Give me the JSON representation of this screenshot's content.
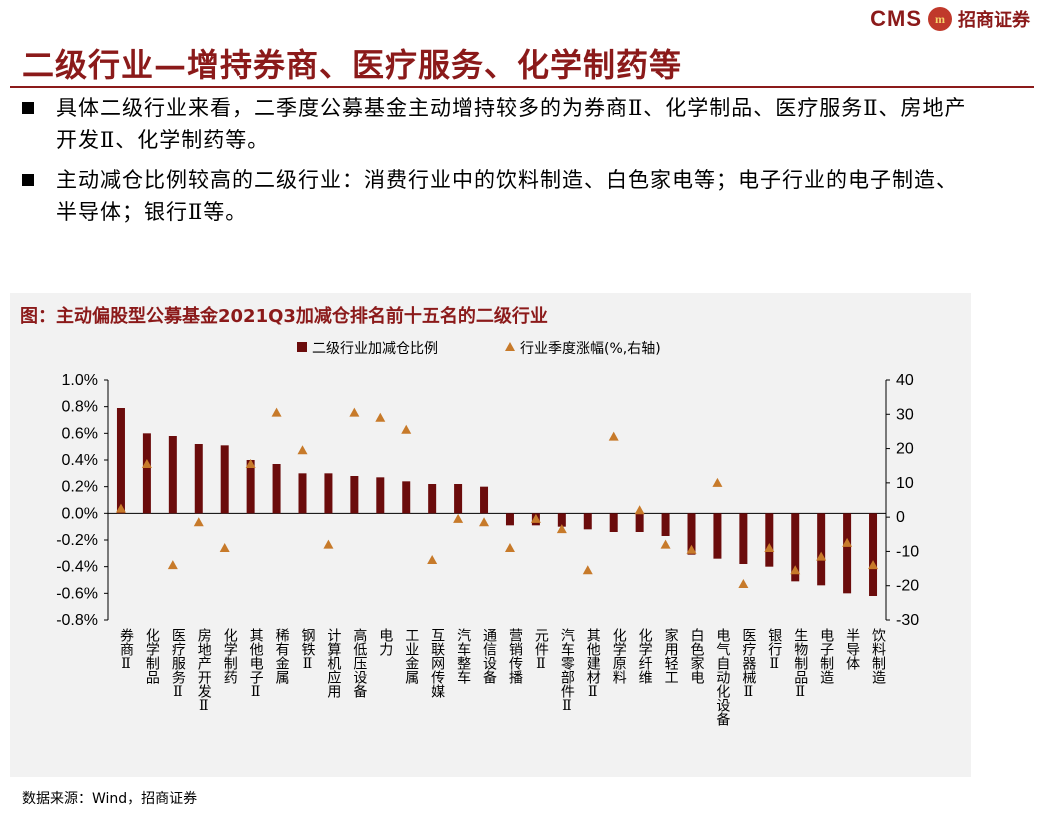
{
  "brand": {
    "cms": "CMS",
    "mark": "m",
    "name": "招商证券"
  },
  "title": "二级行业—增持券商、医疗服务、化学制药等",
  "bullets": [
    "具体二级行业来看，二季度公募基金主动增持较多的为券商Ⅱ、化学制品、医疗服务Ⅱ、房地产开发Ⅱ、化学制药等。",
    "主动减仓比例较高的二级行业：消费行业中的饮料制造、白色家电等；电子行业的电子制造、半导体；银行Ⅱ等。"
  ],
  "source": "数据来源：Wind，招商证券",
  "colors": {
    "bar": "#6b0c0c",
    "marker": "#c77a2a",
    "accent": "#8b1a1a"
  },
  "chart_data": {
    "type": "bar",
    "title": "图：主动偏股型公募基金2021Q3加减仓排名前十五名的二级行业",
    "legend": {
      "bar": "二级行业加减仓比例",
      "marker": "行业季度涨幅(%,右轴)"
    },
    "ylim_left": [
      -0.8,
      1.0
    ],
    "ylim_right": [
      -30,
      40
    ],
    "left_ticks": [
      "1.0%",
      "0.8%",
      "0.6%",
      "0.4%",
      "0.2%",
      "0.0%",
      "-0.2%",
      "-0.4%",
      "-0.6%",
      "-0.8%"
    ],
    "right_ticks": [
      "40",
      "30",
      "20",
      "10",
      "0",
      "-10",
      "-20",
      "-30"
    ],
    "categories": [
      "券商Ⅱ",
      "化学制品",
      "医疗服务Ⅱ",
      "房地产开发Ⅱ",
      "化学制药",
      "其他电子Ⅱ",
      "稀有金属",
      "钢铁Ⅱ",
      "计算机应用",
      "高低压设备",
      "电力",
      "工业金属",
      "互联网传媒",
      "汽车整车",
      "通信设备",
      "营销传播",
      "元件Ⅱ",
      "汽车零部件Ⅱ",
      "其他建材Ⅱ",
      "化学原料",
      "化学纤维",
      "家用轻工",
      "白色家电",
      "电气自动化设备",
      "医疗器械Ⅱ",
      "银行Ⅱ",
      "生物制品Ⅱ",
      "电子制造",
      "半导体",
      "饮料制造"
    ],
    "series": [
      {
        "name": "二级行业加减仓比例",
        "unit": "%",
        "values": [
          0.79,
          0.6,
          0.58,
          0.52,
          0.51,
          0.4,
          0.37,
          0.3,
          0.3,
          0.28,
          0.27,
          0.24,
          0.22,
          0.22,
          0.2,
          -0.09,
          -0.09,
          -0.1,
          -0.12,
          -0.14,
          -0.14,
          -0.17,
          -0.31,
          -0.34,
          -0.38,
          -0.4,
          -0.51,
          -0.54,
          -0.6,
          -0.62
        ]
      },
      {
        "name": "行业季度涨幅(%,右轴)",
        "unit": "%",
        "values": [
          2.5,
          15.5,
          -14.0,
          -1.5,
          -9.0,
          15.5,
          30.5,
          19.5,
          -8.0,
          30.5,
          29.0,
          25.5,
          -12.5,
          -0.5,
          -1.5,
          -9.0,
          -0.5,
          -3.5,
          -15.5,
          23.5,
          2.0,
          -8.0,
          -9.5,
          10.0,
          -19.5,
          -9.0,
          -15.5,
          -11.5,
          -7.5,
          -14.0
        ]
      }
    ]
  }
}
